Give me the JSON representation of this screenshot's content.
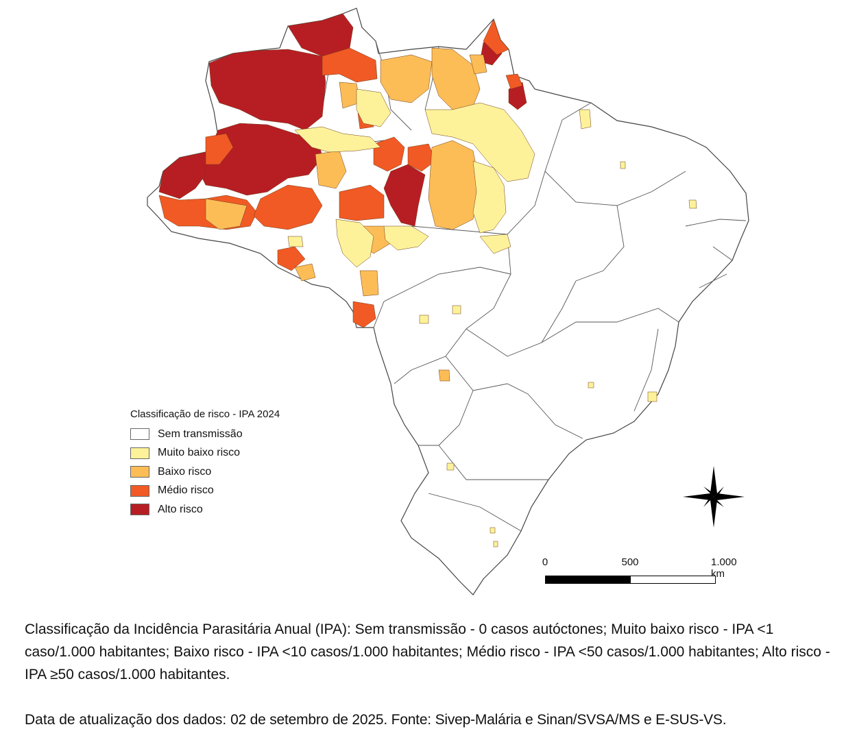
{
  "legend": {
    "title": "Classificação de risco - IPA 2024",
    "items": [
      {
        "label": "Sem transmissão",
        "color": "#ffffff"
      },
      {
        "label": "Muito baixo risco",
        "color": "#fdf29a"
      },
      {
        "label": "Baixo risco",
        "color": "#fcbd57"
      },
      {
        "label": "Médio risco",
        "color": "#f15a24"
      },
      {
        "label": "Alto risco",
        "color": "#b71e23"
      }
    ]
  },
  "scale": {
    "labels": [
      "0",
      "500",
      "1.000 km"
    ]
  },
  "compass": {
    "icon": "north-arrow-compass-icon"
  },
  "caption": "Classificação da Incidência Parasitária Anual (IPA): Sem transmissão - 0 casos autóctones; Muito baixo risco - IPA <1 caso/1.000 habitantes; Baixo risco - IPA <10 casos/1.000 habitantes; Médio risco - IPA <50 casos/1.000 habitantes; Alto risco - IPA ≥50 casos/1.000 habitantes.",
  "footer": {
    "label": "Data de atualização dos dados:",
    "text": "02 de setembro de 2025. Fonte: Sivep-Malária e Sinan/SVSA/MS e E-SUS-VS."
  }
}
